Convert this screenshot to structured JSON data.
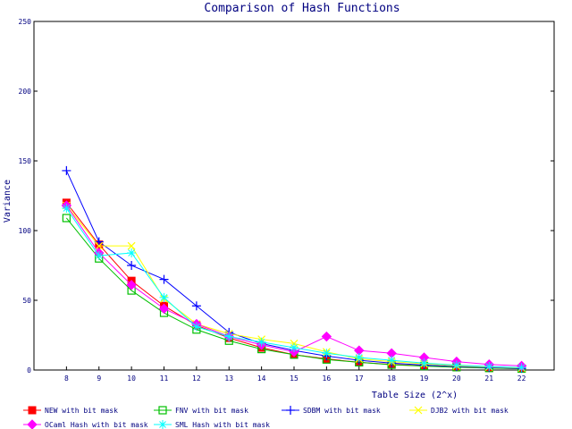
{
  "chart_data": {
    "type": "line",
    "title": "Comparison of Hash Functions",
    "xlabel": "Table Size (2^x)",
    "ylabel": "Variance",
    "x": [
      8,
      9,
      10,
      11,
      12,
      13,
      14,
      15,
      16,
      17,
      18,
      19,
      20,
      21,
      22
    ],
    "xlim": [
      7,
      23
    ],
    "ylim": [
      0,
      250
    ],
    "yticks": [
      0,
      50,
      100,
      150,
      200,
      250
    ],
    "grid": false,
    "legend_position": "bottom",
    "series": [
      {
        "name": "NEW with bit mask",
        "color": "#ff0000",
        "marker": "filled-square",
        "values": [
          120,
          90,
          64,
          46,
          32,
          23,
          16,
          11,
          8,
          5.5,
          4,
          3,
          2,
          1.5,
          1
        ]
      },
      {
        "name": "FNV with bit mask",
        "color": "#00c000",
        "marker": "open-square",
        "values": [
          109,
          80,
          57,
          41,
          29,
          21,
          15,
          11,
          7.5,
          5.5,
          3.8,
          2.8,
          2,
          1.4,
          1
        ]
      },
      {
        "name": "SDBM with bit mask",
        "color": "#0000ff",
        "marker": "plus",
        "values": [
          143,
          92,
          75,
          65,
          46,
          27,
          19,
          14,
          10,
          7,
          5,
          3.5,
          2.5,
          1.8,
          1.2
        ]
      },
      {
        "name": "DJB2 with bit mask",
        "color": "#ffff00",
        "marker": "cross",
        "values": [
          118,
          89,
          89,
          51,
          33,
          26,
          22,
          19,
          13,
          8,
          6,
          4.5,
          3,
          2.2,
          1.5
        ]
      },
      {
        "name": "OCaml Hash with bit mask",
        "color": "#ff00ff",
        "marker": "filled-diamond",
        "values": [
          118,
          84,
          61,
          44,
          33,
          24,
          18,
          13,
          24,
          14,
          12,
          9,
          6,
          4,
          3
        ]
      },
      {
        "name": "SML Hash with bit mask",
        "color": "#00ffff",
        "marker": "star",
        "values": [
          116,
          82,
          84,
          52,
          31,
          24,
          20,
          16,
          12,
          9,
          7,
          5,
          3.5,
          2.5,
          1.8
        ]
      }
    ]
  }
}
